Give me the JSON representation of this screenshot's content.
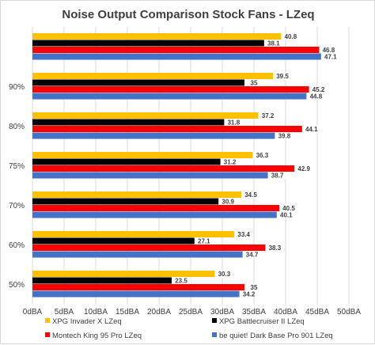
{
  "chart_data": {
    "type": "bar",
    "orientation": "horizontal",
    "title": "Noise Output Comparison Stock Fans - LZeq",
    "xlabel": "",
    "ylabel": "",
    "categories": [
      "",
      "90%",
      "80%",
      "75%",
      "70%",
      "60%",
      "50%"
    ],
    "x_ticks": [
      "0dBA",
      "5dBA",
      "10dBA",
      "15dBA",
      "20dBA",
      "25dBA",
      "30dBA",
      "35dBA",
      "40dBA",
      "45dBA",
      "50dBA"
    ],
    "xlim": [
      0,
      50
    ],
    "grid": true,
    "legend_position": "bottom",
    "series": [
      {
        "name": "XPG Invader X LZeq",
        "color": "#ffc000",
        "values": [
          40.8,
          39.5,
          37.2,
          36.3,
          34.5,
          33.4,
          30.3
        ],
        "labels": [
          "40.8",
          "39.5",
          "37.2",
          "36.3",
          "34.5",
          "33.4",
          "30.3"
        ]
      },
      {
        "name": "XPG Battlecruiser II LZeq",
        "color": "#000000",
        "values": [
          38.1,
          35,
          31.8,
          31.2,
          30.9,
          27.1,
          23.5
        ],
        "labels": [
          "38.1",
          "35",
          "31.8",
          "31.2",
          "30.9",
          "27.1",
          "23.5"
        ]
      },
      {
        "name": "Montech King 95 Pro LZeq",
        "color": "#ff0000",
        "values": [
          46.8,
          45.2,
          44.1,
          42.9,
          40.5,
          38.3,
          35
        ],
        "labels": [
          "46.8",
          "45.2",
          "44.1",
          "42.9",
          "40.5",
          "38.3",
          "35"
        ]
      },
      {
        "name": "be quiet! Dark Base Pro 901 LZeq",
        "color": "#4472c4",
        "values": [
          47.1,
          44.8,
          39.8,
          38.7,
          40.1,
          34.7,
          34.2
        ],
        "labels": [
          "47.1",
          "44.8",
          "39.8",
          "38.7",
          "40.1",
          "34.7",
          "34.2"
        ]
      }
    ]
  }
}
